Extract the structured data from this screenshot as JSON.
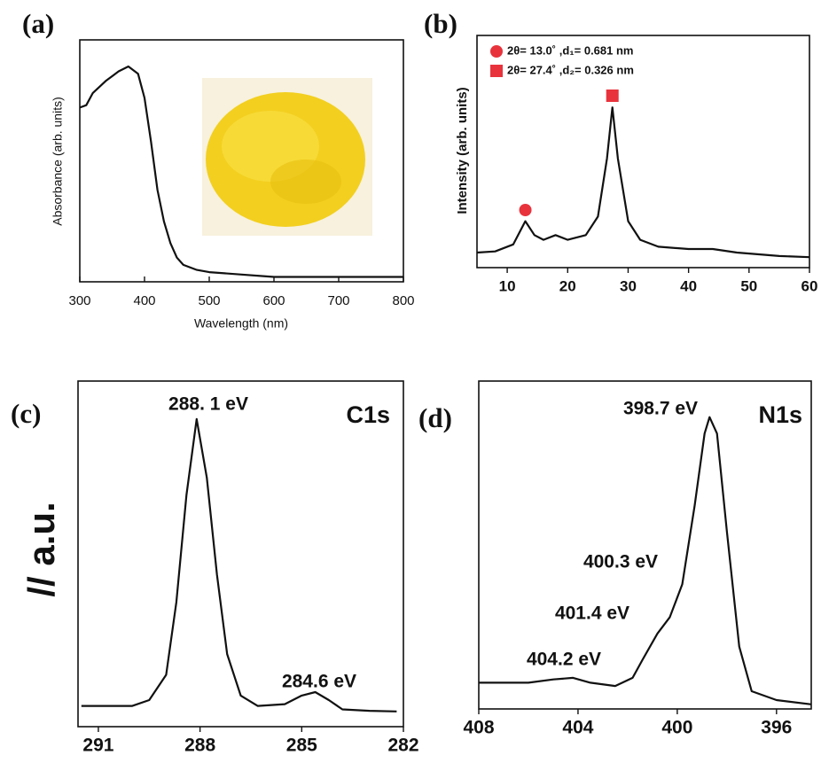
{
  "chart_data": [
    {
      "type": "line",
      "panel_label": "(a)",
      "xlabel": "Wavelength (nm)",
      "ylabel": "Absorbance (arb. units)",
      "x": [
        300,
        310,
        320,
        340,
        360,
        375,
        390,
        400,
        410,
        420,
        430,
        440,
        450,
        460,
        480,
        500,
        550,
        600,
        700,
        800
      ],
      "series": [
        {
          "color": "#111111",
          "values": [
            0.72,
            0.73,
            0.78,
            0.83,
            0.87,
            0.89,
            0.86,
            0.76,
            0.58,
            0.38,
            0.25,
            0.16,
            0.1,
            0.07,
            0.05,
            0.04,
            0.03,
            0.02,
            0.02,
            0.02
          ]
        }
      ],
      "xlim": [
        300,
        800
      ],
      "ylim": [
        0,
        1
      ],
      "xticks": [
        300,
        400,
        500,
        600,
        700,
        800
      ]
    },
    {
      "type": "line",
      "panel_label": "(b)",
      "ylabel": "Intensity (arb. units)",
      "x": [
        5,
        8,
        11,
        13,
        14.5,
        16,
        18,
        20,
        23,
        25,
        26.5,
        27.4,
        28.3,
        30,
        32,
        35,
        40,
        44,
        48,
        55,
        60
      ],
      "series": [
        {
          "color": "#111111",
          "values": [
            0.065,
            0.07,
            0.1,
            0.2,
            0.14,
            0.12,
            0.14,
            0.12,
            0.14,
            0.22,
            0.47,
            0.69,
            0.47,
            0.2,
            0.12,
            0.09,
            0.08,
            0.08,
            0.065,
            0.05,
            0.045
          ]
        }
      ],
      "legend": [
        {
          "marker": "circle",
          "color": "#e8333c",
          "text": "2θ= 13.0˚ ,d₁= 0.681 nm",
          "x": 13.0
        },
        {
          "marker": "square",
          "color": "#e8333c",
          "text": "2θ= 27.4˚ ,d₂= 0.326 nm",
          "x": 27.4
        }
      ],
      "xlim": [
        5,
        60
      ],
      "ylim": [
        0,
        1
      ],
      "xticks": [
        10,
        20,
        30,
        40,
        50,
        60
      ]
    },
    {
      "type": "line",
      "panel_label": "(c)",
      "ylabel": "// a.u.",
      "x": [
        291.5,
        290,
        289.5,
        289,
        288.7,
        288.4,
        288.1,
        287.8,
        287.5,
        287.2,
        286.8,
        286.3,
        285.5,
        285,
        284.6,
        284.2,
        283.8,
        283,
        282.2
      ],
      "series": [
        {
          "color": "#111111",
          "values": [
            0.06,
            0.06,
            0.077,
            0.15,
            0.36,
            0.67,
            0.89,
            0.72,
            0.44,
            0.21,
            0.09,
            0.06,
            0.065,
            0.09,
            0.1,
            0.077,
            0.05,
            0.046,
            0.044
          ]
        }
      ],
      "annotations": [
        "288. 1 eV",
        "284.6 eV",
        "C1s"
      ],
      "xlim": [
        291.6,
        282
      ],
      "ylim": [
        0,
        1
      ],
      "xticks": [
        291,
        288,
        285,
        282
      ]
    },
    {
      "type": "line",
      "panel_label": "(d)",
      "x": [
        408,
        406,
        405,
        404.2,
        403.5,
        402.5,
        401.8,
        401.4,
        400.8,
        400.3,
        399.8,
        399.3,
        398.9,
        398.7,
        398.4,
        398,
        397.5,
        397,
        396,
        394.6
      ],
      "series": [
        {
          "color": "#111111",
          "values": [
            0.08,
            0.08,
            0.09,
            0.095,
            0.08,
            0.07,
            0.095,
            0.15,
            0.23,
            0.28,
            0.38,
            0.62,
            0.84,
            0.89,
            0.84,
            0.54,
            0.19,
            0.054,
            0.027,
            0.014
          ]
        }
      ],
      "annotations": [
        "398.7 eV",
        "400.3 eV",
        "401.4 eV",
        "404.2 eV",
        "N1s"
      ],
      "xlim": [
        408,
        394.6
      ],
      "ylim": [
        0,
        1
      ],
      "xticks": [
        408,
        404,
        400,
        396
      ]
    }
  ]
}
